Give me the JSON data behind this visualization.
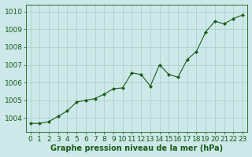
{
  "x": [
    0,
    1,
    2,
    3,
    4,
    5,
    6,
    7,
    8,
    9,
    10,
    11,
    12,
    13,
    14,
    15,
    16,
    17,
    18,
    19,
    20,
    21,
    22,
    23
  ],
  "y": [
    1003.7,
    1003.7,
    1003.8,
    1004.1,
    1004.4,
    1004.9,
    1005.0,
    1005.1,
    1005.35,
    1005.65,
    1005.7,
    1006.55,
    1006.45,
    1005.8,
    1007.0,
    1006.45,
    1006.3,
    1007.3,
    1007.75,
    1008.85,
    1009.45,
    1009.3,
    1009.6,
    1009.8
  ],
  "line_color": "#1a5c1a",
  "marker": "D",
  "marker_size": 2.0,
  "bg_color": "#cce8e8",
  "grid_color": "#aacccc",
  "xlabel": "Graphe pression niveau de la mer (hPa)",
  "xlabel_color": "#1a5c1a",
  "xlabel_fontsize": 7.0,
  "tick_color": "#1a5c1a",
  "tick_fontsize": 6.5,
  "ytick_fontsize": 6.5,
  "ylim": [
    1003.2,
    1010.4
  ],
  "yticks": [
    1004,
    1005,
    1006,
    1007,
    1008,
    1009,
    1010
  ],
  "xlim": [
    -0.5,
    23.5
  ],
  "xticks": [
    0,
    1,
    2,
    3,
    4,
    5,
    6,
    7,
    8,
    9,
    10,
    11,
    12,
    13,
    14,
    15,
    16,
    17,
    18,
    19,
    20,
    21,
    22,
    23
  ],
  "xtick_labels": [
    "0",
    "1",
    "2",
    "3",
    "4",
    "5",
    "6",
    "7",
    "8",
    "9",
    "10",
    "11",
    "12",
    "13",
    "14",
    "15",
    "16",
    "17",
    "18",
    "19",
    "20",
    "21",
    "22",
    "23"
  ]
}
